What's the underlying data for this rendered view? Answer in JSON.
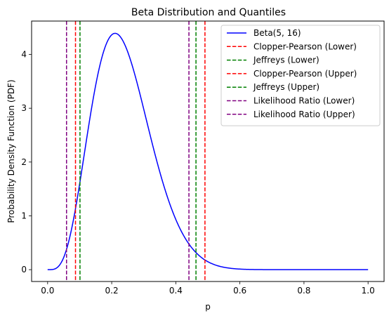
{
  "chart_data": {
    "type": "line",
    "title": "Beta Distribution and Quantiles",
    "xlabel": "p",
    "ylabel": "Probability Density Function (PDF)",
    "xlim": [
      -0.05,
      1.05
    ],
    "ylim": [
      -0.22,
      4.62
    ],
    "xticks": [
      0.0,
      0.2,
      0.4,
      0.6,
      0.8,
      1.0
    ],
    "xtick_labels": [
      "0.0",
      "0.2",
      "0.4",
      "0.6",
      "0.8",
      "1.0"
    ],
    "yticks": [
      0,
      1,
      2,
      3,
      4
    ],
    "ytick_labels": [
      "0",
      "1",
      "2",
      "3",
      "4"
    ],
    "grid": false,
    "legend_position": "top-right",
    "series": [
      {
        "name": "Beta(5, 16)",
        "kind": "curve",
        "color": "#0000ff",
        "style": "solid",
        "distribution": {
          "family": "beta",
          "alpha": 5,
          "beta": 16
        },
        "x_range": [
          0,
          1
        ]
      },
      {
        "name": "Clopper-Pearson (Lower)",
        "kind": "vline",
        "x": 0.087,
        "color": "#ff0000",
        "style": "dashed"
      },
      {
        "name": "Jeffreys (Lower)",
        "kind": "vline",
        "x": 0.101,
        "color": "#008000",
        "style": "dashed"
      },
      {
        "name": "Clopper-Pearson (Upper)",
        "kind": "vline",
        "x": 0.491,
        "color": "#ff0000",
        "style": "dashed"
      },
      {
        "name": "Jeffreys (Upper)",
        "kind": "vline",
        "x": 0.463,
        "color": "#008000",
        "style": "dashed"
      },
      {
        "name": "Likelihood Ratio (Lower)",
        "kind": "vline",
        "x": 0.059,
        "color": "#800080",
        "style": "dashed"
      },
      {
        "name": "Likelihood Ratio (Upper)",
        "kind": "vline",
        "x": 0.441,
        "color": "#800080",
        "style": "dashed"
      }
    ]
  }
}
